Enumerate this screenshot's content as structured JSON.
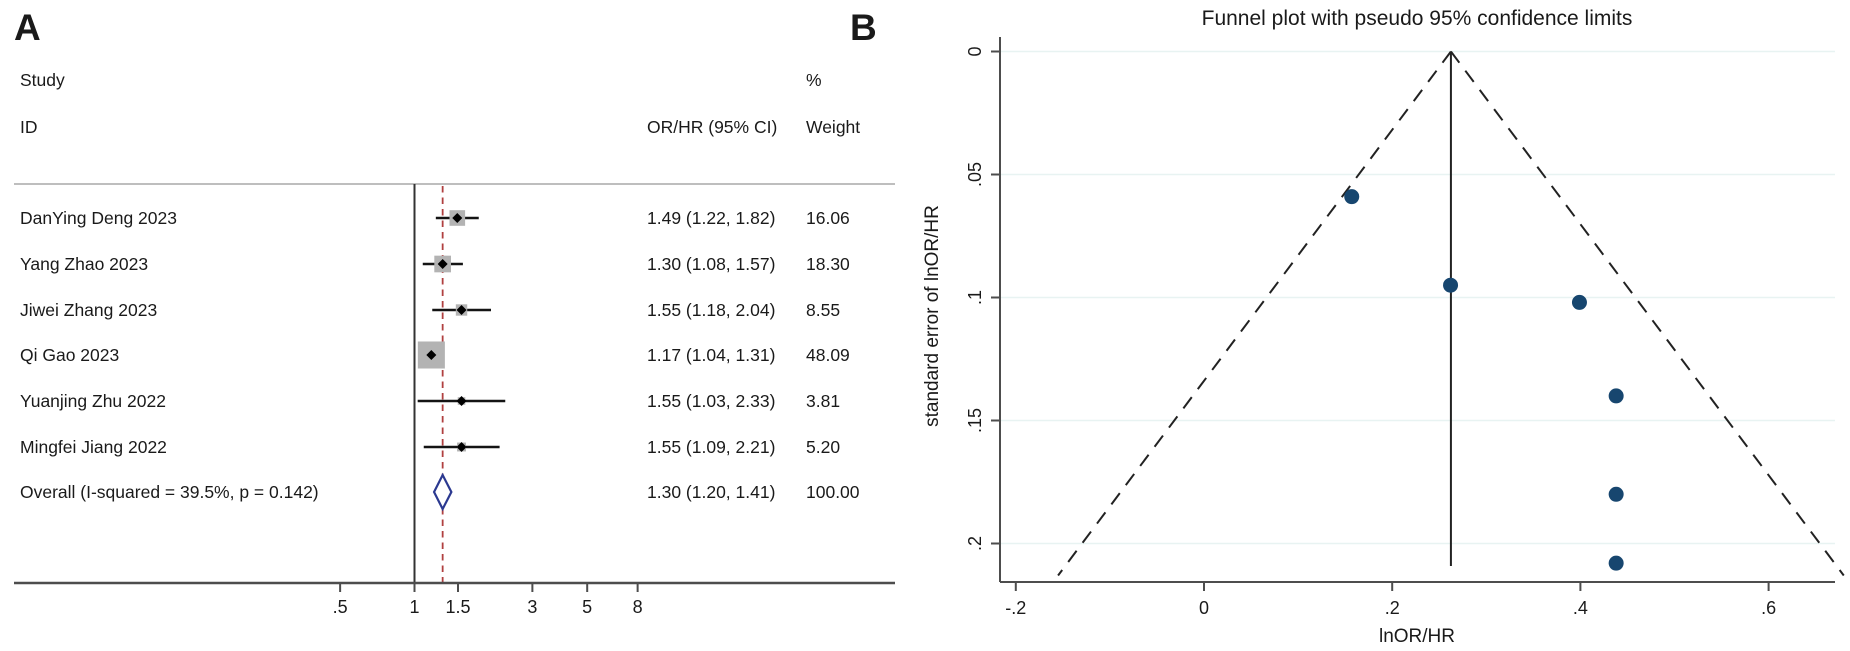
{
  "panel_a": {
    "label": "A",
    "col_headers": {
      "study_line1": "Study",
      "study_line2": "ID",
      "or_header": "OR/HR (95% CI)",
      "pct_header": "%",
      "weight_header": "Weight"
    },
    "studies": [
      {
        "name": "DanYing Deng 2023",
        "or_ci": "1.49 (1.22, 1.82)",
        "weight": "16.06"
      },
      {
        "name": "Yang Zhao 2023",
        "or_ci": "1.30 (1.08, 1.57)",
        "weight": "18.30"
      },
      {
        "name": "Jiwei Zhang 2023",
        "or_ci": "1.55 (1.18, 2.04)",
        "weight": "8.55"
      },
      {
        "name": "Qi Gao 2023",
        "or_ci": "1.17 (1.04, 1.31)",
        "weight": "48.09"
      },
      {
        "name": "Yuanjing Zhu 2022",
        "or_ci": "1.55 (1.03, 2.33)",
        "weight": "3.81"
      },
      {
        "name": "Mingfei Jiang 2022",
        "or_ci": "1.55 (1.09, 2.21)",
        "weight": "5.20"
      }
    ],
    "overall": {
      "name": "Overall  (I-squared = 39.5%, p = 0.142)",
      "or_ci": "1.30 (1.20, 1.41)",
      "weight": "100.00"
    },
    "x_tick_labels": [
      ".5",
      "1",
      "1.5",
      "3",
      "5",
      "8"
    ]
  },
  "panel_b": {
    "label": "B",
    "title": "Funnel plot with pseudo 95% confidence limits",
    "ylabel": "standard error of lnOR/HR",
    "xlabel": "lnOR/HR",
    "y_tick_labels": [
      "0",
      ".05",
      ".1",
      ".15",
      ".2"
    ],
    "x_tick_labels": [
      "-.2",
      "0",
      ".2",
      ".4",
      ".6"
    ]
  },
  "colors": {
    "text": "#1a1a1a",
    "axis": "#4d4d4d",
    "separator": "#a8a8a8",
    "ci_line": "#141414",
    "weight_box": "#b3b3b3",
    "dashed_red": "#b04040",
    "diamond_navy": "#2b3990",
    "funnel_point": "#17466f",
    "funnel_line": "#222222",
    "gridline": "#e8f3f2"
  },
  "chart_data": [
    {
      "type": "scatter",
      "subtype": "forest-plot",
      "panel": "A",
      "x_scale": "log",
      "studies": [
        "DanYing Deng 2023",
        "Yang Zhao 2023",
        "Jiwei Zhang 2023",
        "Qi Gao 2023",
        "Yuanjing Zhu 2022",
        "Mingfei Jiang 2022"
      ],
      "estimates": [
        1.49,
        1.3,
        1.55,
        1.17,
        1.55,
        1.55
      ],
      "ci_low": [
        1.22,
        1.08,
        1.18,
        1.04,
        1.03,
        1.09
      ],
      "ci_high": [
        1.82,
        1.57,
        2.04,
        1.31,
        2.33,
        2.21
      ],
      "weights": [
        16.06,
        18.3,
        8.55,
        48.09,
        3.81,
        5.2
      ],
      "overall": {
        "label": "Overall  (I-squared = 39.5%, p = 0.142)",
        "estimate": 1.3,
        "ci_low": 1.2,
        "ci_high": 1.41,
        "weight": 100.0
      },
      "x_ticks": [
        0.5,
        1,
        1.5,
        3,
        5,
        8
      ],
      "null_line": 1,
      "overall_dashed_line": 1.3,
      "grid": false
    },
    {
      "type": "scatter",
      "subtype": "funnel-plot",
      "panel": "B",
      "title": "Funnel plot with pseudo 95% confidence limits",
      "xlabel": "lnOR/HR",
      "ylabel": "standard error of lnOR/HR",
      "x": [
        0.157,
        0.262,
        0.399,
        0.438,
        0.438,
        0.438
      ],
      "se": [
        0.059,
        0.095,
        0.102,
        0.14,
        0.18,
        0.208
      ],
      "center": 0.2624,
      "ci_multiplier": 1.96,
      "pseudo_ci_se_max": 0.213,
      "x_ticks": [
        -0.2,
        0,
        0.2,
        0.4,
        0.6
      ],
      "y_ticks": [
        0,
        0.05,
        0.1,
        0.15,
        0.2
      ],
      "ylim": [
        0,
        0.216
      ],
      "y_reversed": true,
      "grid": true,
      "legend": "none"
    }
  ]
}
